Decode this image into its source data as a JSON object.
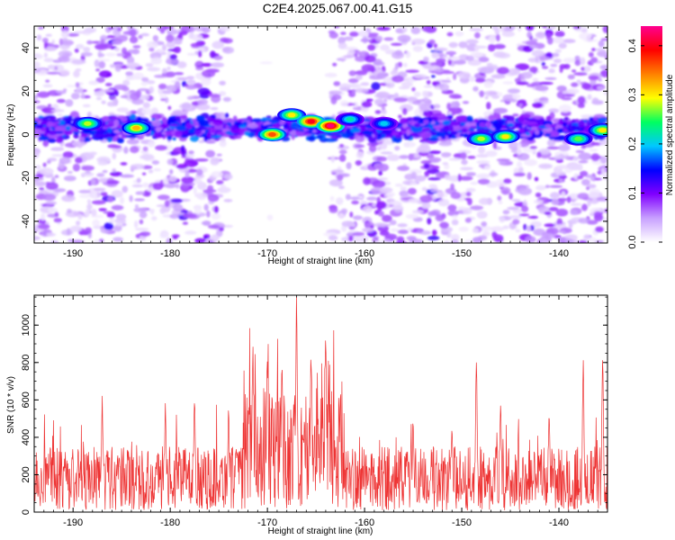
{
  "title": "C2E4.2025.067.00.41.G15",
  "chart_data": [
    {
      "type": "heatmap",
      "name": "spectrogram",
      "xlabel": "Height of straight line (km)",
      "ylabel": "Frequency (Hz)",
      "xlim": [
        -194,
        -135
      ],
      "ylim": [
        -50,
        50
      ],
      "xticks": [
        -190,
        -180,
        -170,
        -160,
        -150,
        -140
      ],
      "yticks": [
        -40,
        -20,
        0,
        20,
        40
      ],
      "grid": false,
      "band_center_hz": 3,
      "band_halfwidth_hz": 5,
      "hot_spots": [
        {
          "x": -188.5,
          "y": 5,
          "value": 0.28
        },
        {
          "x": -183.5,
          "y": 3,
          "value": 0.32
        },
        {
          "x": -169.5,
          "y": 0,
          "value": 0.36
        },
        {
          "x": -167.5,
          "y": 9,
          "value": 0.3
        },
        {
          "x": -165.5,
          "y": 6,
          "value": 0.4
        },
        {
          "x": -163.5,
          "y": 4,
          "value": 0.43
        },
        {
          "x": -161.5,
          "y": 7,
          "value": 0.22
        },
        {
          "x": -158.0,
          "y": 5,
          "value": 0.2
        },
        {
          "x": -148.0,
          "y": -2,
          "value": 0.28
        },
        {
          "x": -145.5,
          "y": -1,
          "value": 0.3
        },
        {
          "x": -138.0,
          "y": -2,
          "value": 0.26
        },
        {
          "x": -135.5,
          "y": 2,
          "value": 0.3
        }
      ],
      "colorbar": {
        "label": "Normalized spectral amplitude",
        "range": [
          0.0,
          0.44
        ],
        "ticks": [
          "0.0",
          "0.1",
          "0.2",
          "0.3",
          "0.4"
        ],
        "tick_values": [
          0.0,
          0.1,
          0.2,
          0.3,
          0.4
        ],
        "colors": [
          "#ffffff",
          "#c8a0ff",
          "#8000ff",
          "#0000ff",
          "#00c8ff",
          "#00ff60",
          "#ffff00",
          "#ff8000",
          "#ff0000",
          "#ff0090"
        ]
      }
    },
    {
      "type": "line",
      "name": "snr",
      "xlabel": "Height of straight line (km)",
      "ylabel": "SNR (10 * v/v)",
      "xlim": [
        -194,
        -135
      ],
      "ylim": [
        0,
        1160
      ],
      "xticks": [
        -190,
        -180,
        -170,
        -160,
        -150,
        -140
      ],
      "yticks": [
        0,
        200,
        400,
        600,
        800,
        1000
      ],
      "color": "#ee3333",
      "peaks": [
        {
          "x": -187.0,
          "y": 640
        },
        {
          "x": -180.5,
          "y": 590
        },
        {
          "x": -177.5,
          "y": 630
        },
        {
          "x": -174.0,
          "y": 560
        },
        {
          "x": -171.5,
          "y": 910
        },
        {
          "x": -170.0,
          "y": 880
        },
        {
          "x": -168.5,
          "y": 890
        },
        {
          "x": -167.0,
          "y": 1160
        },
        {
          "x": -165.5,
          "y": 900
        },
        {
          "x": -164.0,
          "y": 1000
        },
        {
          "x": -162.5,
          "y": 560
        },
        {
          "x": -155.0,
          "y": 520
        },
        {
          "x": -151.0,
          "y": 480
        },
        {
          "x": -148.5,
          "y": 860
        },
        {
          "x": -146.0,
          "y": 610
        },
        {
          "x": -141.0,
          "y": 580
        },
        {
          "x": -137.5,
          "y": 860
        },
        {
          "x": -135.5,
          "y": 880
        }
      ]
    }
  ]
}
